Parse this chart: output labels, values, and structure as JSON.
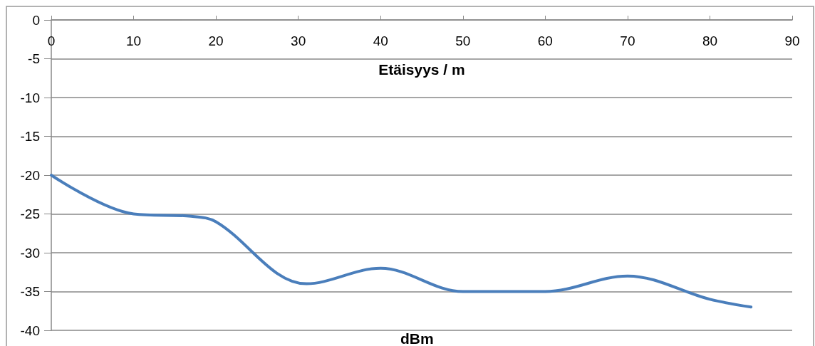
{
  "chart_data": {
    "type": "line",
    "xlabel": "Etäisyys / m",
    "annotations": [
      "dBm"
    ],
    "x": [
      0,
      10,
      17,
      20,
      31,
      40,
      50,
      60,
      70,
      80,
      85
    ],
    "series": [
      {
        "color": "#4a7ebb",
        "values": [
          -20,
          -25,
          -25.3,
          -26,
          -34,
          -32,
          -35,
          -35,
          -33,
          -36,
          -37
        ]
      }
    ],
    "xlim": [
      0,
      90
    ],
    "xticks": [
      0,
      10,
      20,
      30,
      40,
      50,
      60,
      70,
      80,
      90
    ],
    "ylim": [
      -40,
      0
    ],
    "yticks": [
      -40,
      -35,
      -30,
      -25,
      -20,
      -15,
      -10,
      -5,
      0
    ],
    "grid": "y",
    "marker": "none",
    "line_style": "solid"
  }
}
